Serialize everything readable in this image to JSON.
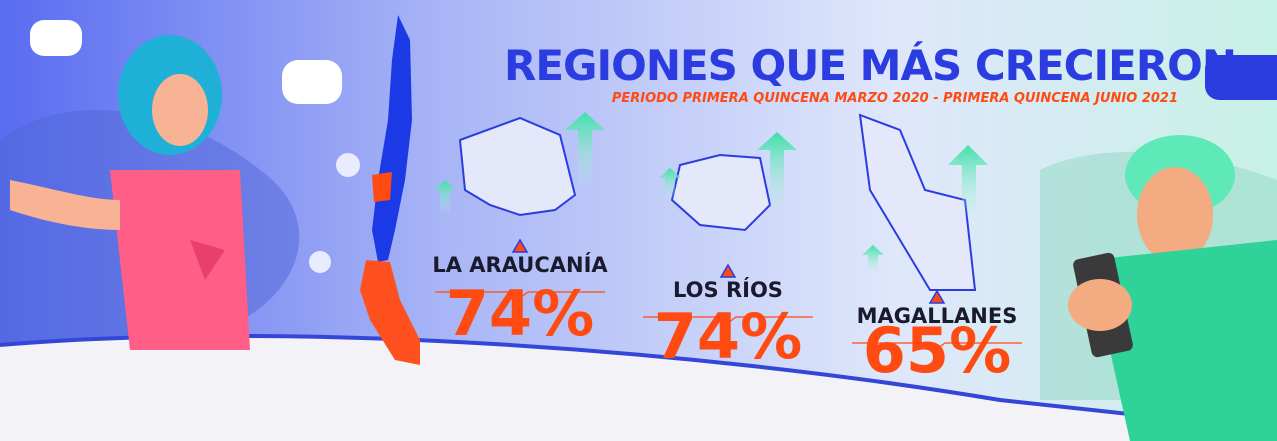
{
  "header": {
    "title": "REGIONES QUE MÁS CRECIERON",
    "subtitle": "PERIODO PRIMERA QUINCENA MARZO 2020 - PRIMERA QUINCENA JUNIO 2021"
  },
  "regions": [
    {
      "name": "LA ARAUCANÍA",
      "value": "74%"
    },
    {
      "name": "LOS RÍOS",
      "value": "74%"
    },
    {
      "name": "MAGALLANES",
      "value": "65%"
    }
  ]
}
